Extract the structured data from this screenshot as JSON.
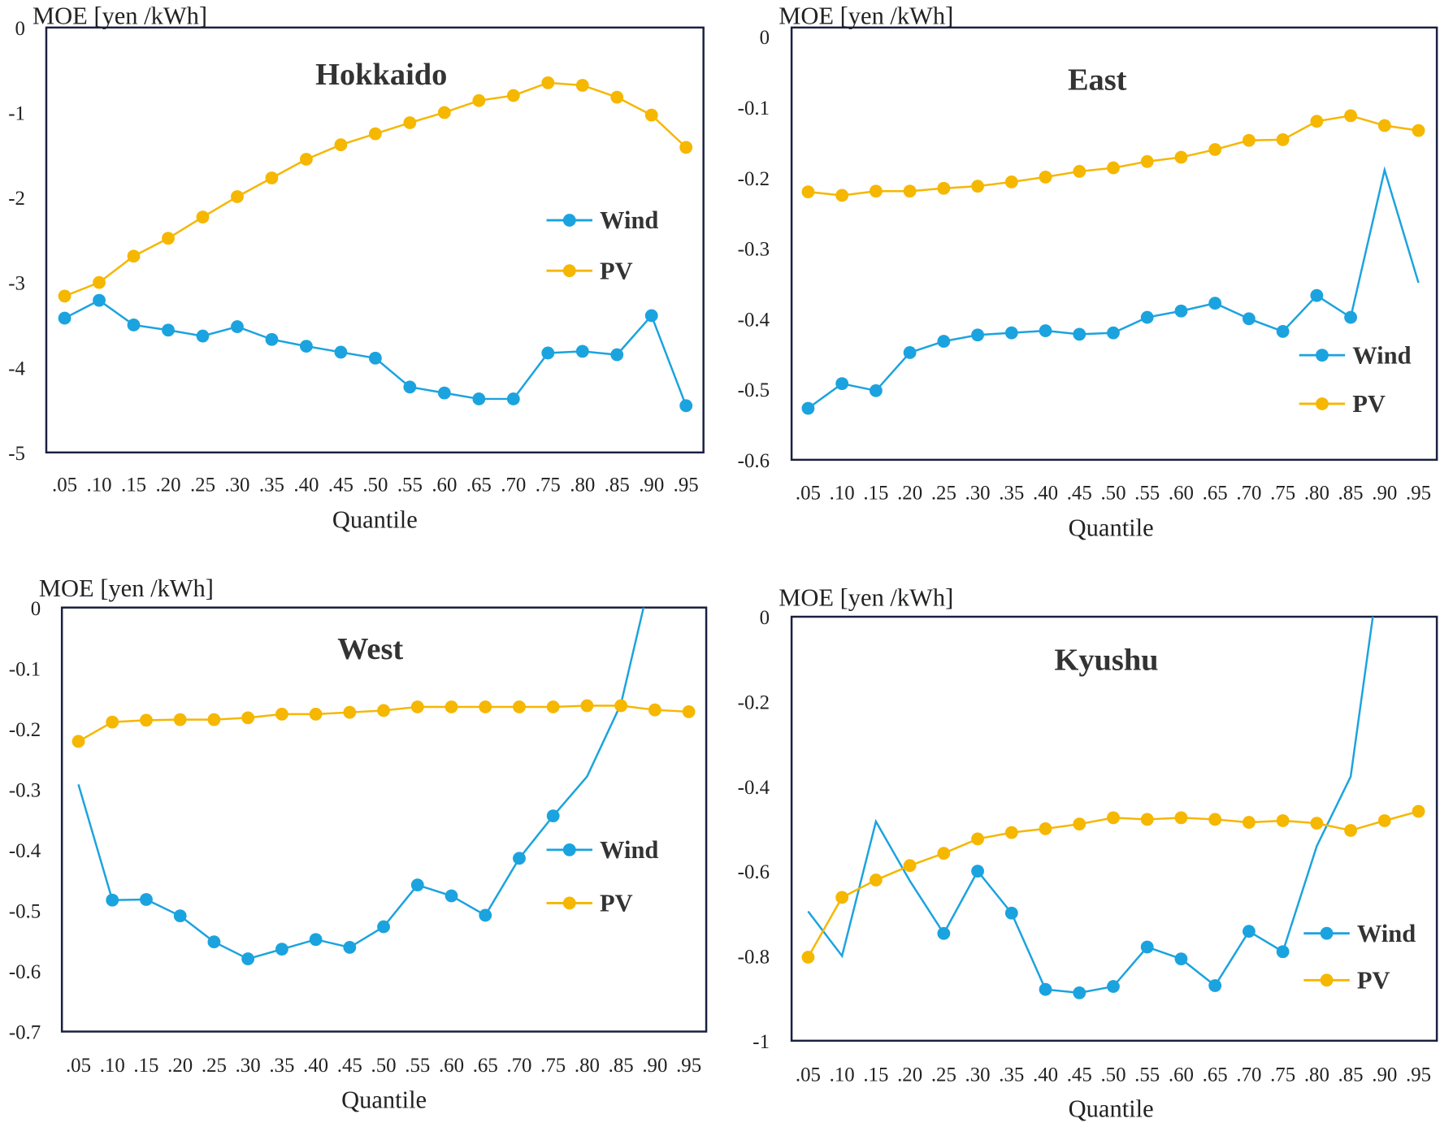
{
  "colors": {
    "wind": "#1ba3df",
    "pv": "#f5b700",
    "frame": "#1a2040"
  },
  "chart_data": [
    {
      "type": "line",
      "title": "Hokkaido",
      "ylabel": "MOE [yen /kWh]",
      "xlabel": "Quantile",
      "x": [
        ".05",
        ".10",
        ".15",
        ".20",
        ".25",
        ".30",
        ".35",
        ".40",
        ".45",
        ".50",
        ".55",
        ".60",
        ".65",
        ".70",
        ".75",
        ".80",
        ".85",
        ".90",
        ".95"
      ],
      "ylim": [
        -5,
        0
      ],
      "yticks": [
        0,
        -1,
        -2,
        -3,
        -4,
        -5
      ],
      "ytick_labels": [
        "0",
        "-1",
        "-2",
        "-3",
        "-4",
        "-5"
      ],
      "legend": "center-right",
      "series": [
        {
          "name": "Wind",
          "key": "wind",
          "values": [
            -3.42,
            -3.21,
            -3.5,
            -3.56,
            -3.63,
            -3.52,
            -3.67,
            -3.75,
            -3.82,
            -3.89,
            -4.23,
            -4.3,
            -4.37,
            -4.37,
            -3.83,
            -3.81,
            -3.85,
            -3.39,
            -4.45
          ],
          "markers": [
            1,
            1,
            1,
            1,
            1,
            1,
            1,
            1,
            1,
            1,
            1,
            1,
            1,
            1,
            1,
            1,
            1,
            1,
            1
          ]
        },
        {
          "name": "PV",
          "key": "pv",
          "values": [
            -3.16,
            -3.0,
            -2.69,
            -2.48,
            -2.23,
            -1.99,
            -1.77,
            -1.55,
            -1.38,
            -1.25,
            -1.12,
            -1.0,
            -0.86,
            -0.8,
            -0.65,
            -0.68,
            -0.82,
            -1.03,
            -1.41
          ],
          "markers": [
            1,
            1,
            1,
            1,
            1,
            1,
            1,
            1,
            1,
            1,
            1,
            1,
            1,
            1,
            1,
            1,
            1,
            1,
            1
          ]
        }
      ]
    },
    {
      "type": "line",
      "title": "East",
      "ylabel": "MOE [yen /kWh]",
      "xlabel": "Quantile",
      "x": [
        ".05",
        ".10",
        ".15",
        ".20",
        ".25",
        ".30",
        ".35",
        ".40",
        ".45",
        ".50",
        ".55",
        ".60",
        ".65",
        ".70",
        ".75",
        ".80",
        ".85",
        ".90",
        ".95"
      ],
      "ylim": [
        -0.6,
        0
      ],
      "yticks": [
        0,
        -0.1,
        -0.2,
        -0.3,
        -0.4,
        -0.5,
        -0.6
      ],
      "ytick_labels": [
        "0",
        "-0.1",
        "-0.2",
        "-0.3",
        "-0.4",
        "-0.5",
        "-0.6"
      ],
      "legend": "center-right",
      "series": [
        {
          "name": "Wind",
          "key": "wind",
          "values": [
            -0.527,
            -0.492,
            -0.502,
            -0.448,
            -0.432,
            -0.423,
            -0.42,
            -0.417,
            -0.422,
            -0.42,
            -0.398,
            -0.389,
            -0.378,
            -0.4,
            -0.418,
            -0.367,
            -0.398,
            -0.189,
            -0.349
          ],
          "markers": [
            1,
            1,
            1,
            1,
            1,
            1,
            1,
            1,
            1,
            1,
            1,
            1,
            1,
            1,
            1,
            1,
            1,
            0,
            0
          ]
        },
        {
          "name": "PV",
          "key": "pv",
          "values": [
            -0.22,
            -0.225,
            -0.219,
            -0.219,
            -0.215,
            -0.212,
            -0.206,
            -0.199,
            -0.191,
            -0.186,
            -0.177,
            -0.171,
            -0.16,
            -0.147,
            -0.146,
            -0.12,
            -0.112,
            -0.126,
            -0.133
          ],
          "markers": [
            1,
            1,
            1,
            1,
            1,
            1,
            1,
            1,
            1,
            1,
            1,
            1,
            1,
            1,
            1,
            1,
            1,
            1,
            1
          ]
        }
      ]
    },
    {
      "type": "line",
      "title": "West",
      "ylabel": "MOE [yen /kWh]",
      "xlabel": "Quantile",
      "x": [
        ".05",
        ".10",
        ".15",
        ".20",
        ".25",
        ".30",
        ".35",
        ".40",
        ".45",
        ".50",
        ".55",
        ".60",
        ".65",
        ".70",
        ".75",
        ".80",
        ".85",
        ".90",
        ".95"
      ],
      "ylim": [
        -0.7,
        0
      ],
      "yticks": [
        0,
        -0.1,
        -0.2,
        -0.3,
        -0.4,
        -0.5,
        -0.6,
        -0.7
      ],
      "ytick_labels": [
        "0",
        "-0.1",
        "-0.2",
        "-0.3",
        "-0.4",
        "-0.5",
        "-0.6",
        "-0.7"
      ],
      "legend": "center-right",
      "series": [
        {
          "name": "Wind",
          "key": "wind",
          "values": [
            -0.292,
            -0.483,
            -0.482,
            -0.509,
            -0.552,
            -0.58,
            -0.564,
            -0.548,
            -0.561,
            -0.527,
            -0.458,
            -0.476,
            -0.508,
            -0.414,
            -0.344,
            -0.279,
            -0.159,
            0.08,
            null
          ],
          "markers": [
            0,
            1,
            1,
            1,
            1,
            1,
            1,
            1,
            1,
            1,
            1,
            1,
            1,
            1,
            1,
            0,
            0,
            0,
            0
          ]
        },
        {
          "name": "PV",
          "key": "pv",
          "values": [
            -0.221,
            -0.189,
            -0.186,
            -0.185,
            -0.185,
            -0.182,
            -0.176,
            -0.176,
            -0.173,
            -0.17,
            -0.164,
            -0.164,
            -0.164,
            -0.164,
            -0.164,
            -0.162,
            -0.162,
            -0.169,
            -0.172
          ],
          "markers": [
            1,
            1,
            1,
            1,
            1,
            1,
            1,
            1,
            1,
            1,
            1,
            1,
            1,
            1,
            1,
            1,
            1,
            1,
            1
          ]
        }
      ]
    },
    {
      "type": "line",
      "title": "Kyushu",
      "ylabel": "MOE [yen /kWh]",
      "xlabel": "Quantile",
      "x": [
        ".05",
        ".10",
        ".15",
        ".20",
        ".25",
        ".30",
        ".35",
        ".40",
        ".45",
        ".50",
        ".55",
        ".60",
        ".65",
        ".70",
        ".75",
        ".80",
        ".85",
        ".90",
        ".95"
      ],
      "ylim": [
        -1,
        0
      ],
      "yticks": [
        0,
        -0.2,
        -0.4,
        -0.6,
        -0.8,
        -1
      ],
      "ytick_labels": [
        "0",
        "-0.2",
        "-0.4",
        "-0.6",
        "-0.8",
        "-1"
      ],
      "legend": "bottom-right",
      "series": [
        {
          "name": "Wind",
          "key": "wind",
          "values": [
            -0.695,
            -0.8,
            -0.483,
            -0.623,
            -0.747,
            -0.6,
            -0.699,
            -0.879,
            -0.887,
            -0.872,
            -0.779,
            -0.807,
            -0.87,
            -0.742,
            -0.79,
            -0.541,
            -0.377,
            0.2,
            null
          ],
          "markers": [
            0,
            0,
            0,
            0,
            1,
            1,
            1,
            1,
            1,
            1,
            1,
            1,
            1,
            1,
            1,
            0,
            0,
            0,
            0
          ]
        },
        {
          "name": "PV",
          "key": "pv",
          "values": [
            -0.803,
            -0.662,
            -0.621,
            -0.587,
            -0.558,
            -0.524,
            -0.509,
            -0.5,
            -0.489,
            -0.474,
            -0.478,
            -0.474,
            -0.478,
            -0.485,
            -0.481,
            -0.487,
            -0.504,
            -0.481,
            -0.459
          ],
          "markers": [
            1,
            1,
            1,
            1,
            1,
            1,
            1,
            1,
            1,
            1,
            1,
            1,
            1,
            1,
            1,
            1,
            1,
            1,
            1
          ]
        }
      ]
    }
  ]
}
